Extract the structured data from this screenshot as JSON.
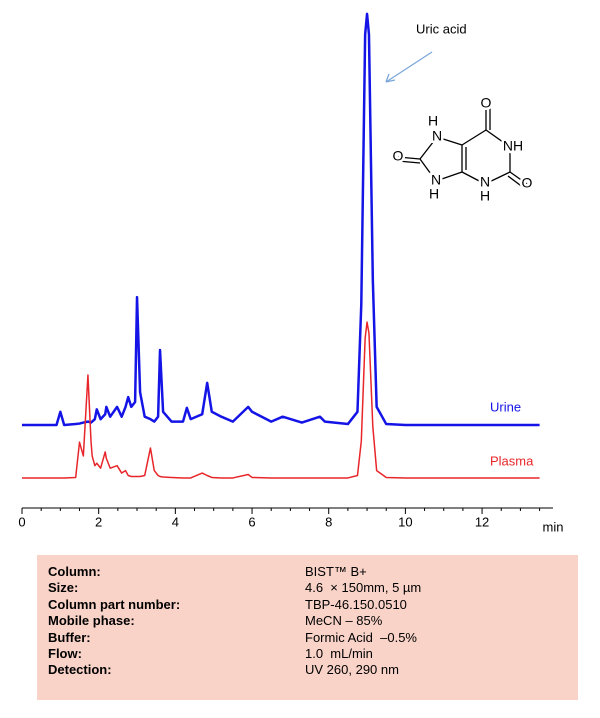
{
  "chart_data": {
    "type": "line",
    "annotation": "Uric acid",
    "x_unit": "min",
    "x": [
      0,
      0.9,
      1.0,
      1.1,
      1.4,
      1.5,
      1.6,
      1.72,
      1.8,
      1.83,
      1.9,
      1.95,
      2.05,
      2.17,
      2.2,
      2.3,
      2.48,
      2.6,
      2.7,
      2.77,
      2.85,
      2.95,
      3.0,
      3.08,
      3.2,
      3.35,
      3.45,
      3.55,
      3.6,
      3.68,
      3.9,
      4.2,
      4.3,
      4.4,
      4.7,
      4.83,
      4.95,
      5.2,
      5.5,
      5.9,
      6.0,
      6.5,
      6.8,
      7.3,
      7.77,
      7.9,
      8.5,
      8.75,
      8.85,
      8.95,
      9.0,
      9.05,
      9.15,
      9.25,
      9.5,
      10,
      11,
      12,
      13.5
    ],
    "series": [
      {
        "name": "Urine",
        "color": "#1414e6",
        "values": [
          15.3,
          15.3,
          18,
          15.3,
          15.5,
          15.6,
          15.8,
          16,
          15.8,
          16,
          16.5,
          18.5,
          16.5,
          17.5,
          19,
          17,
          19,
          17,
          19,
          21,
          19,
          20,
          41.4,
          22,
          17,
          16.5,
          16,
          17,
          30.6,
          18,
          16,
          16,
          18.8,
          16.5,
          17.5,
          23.9,
          18,
          17,
          16,
          19,
          18,
          16,
          17,
          15.8,
          17,
          16,
          15.5,
          18,
          40,
          95,
          99.2,
          95,
          45,
          19,
          15.5,
          15.3,
          15.3,
          15.3,
          15.3
        ]
      },
      {
        "name": "Plasma",
        "color": "#e8262a",
        "values": [
          4.5,
          4.5,
          4.5,
          4.5,
          4.6,
          11.8,
          9,
          25.5,
          12,
          9,
          7,
          7.5,
          6.5,
          9.8,
          8.5,
          6.5,
          7,
          5.5,
          6,
          5,
          4.8,
          4.8,
          4.8,
          4.8,
          5,
          10.6,
          6,
          5,
          4.8,
          4.7,
          4.6,
          4.5,
          4.5,
          4.5,
          5.5,
          5,
          4.6,
          4.5,
          4.5,
          5.2,
          4.6,
          4.5,
          4.5,
          4.5,
          4.5,
          4.5,
          4.5,
          5,
          12,
          33,
          36.3,
          34,
          15,
          6,
          4.6,
          4.5,
          4.5,
          4.5,
          4.5
        ]
      }
    ],
    "xlim": [
      0,
      13.85
    ],
    "xticks": [
      0,
      2,
      4,
      6,
      8,
      10,
      12
    ],
    "ylim": [
      0,
      100
    ]
  },
  "molecule": {
    "atoms": [
      "O",
      "H",
      "N",
      "NH",
      "O",
      "N",
      "H",
      "N",
      "H",
      "O"
    ]
  },
  "conditions": {
    "rows": [
      [
        "Column:",
        "BIST™ B+"
      ],
      [
        "Size:",
        "4.6  × 150mm, 5 µm"
      ],
      [
        "Column part number:",
        "TBP-46.150.0510"
      ],
      [
        "Mobile phase:",
        "MeCN – 85%"
      ],
      [
        "Buffer:",
        "Formic Acid  –0.5%"
      ],
      [
        "Flow:",
        "1.0  mL/min"
      ],
      [
        "Detection:",
        "UV 260, 290 nm"
      ]
    ]
  }
}
